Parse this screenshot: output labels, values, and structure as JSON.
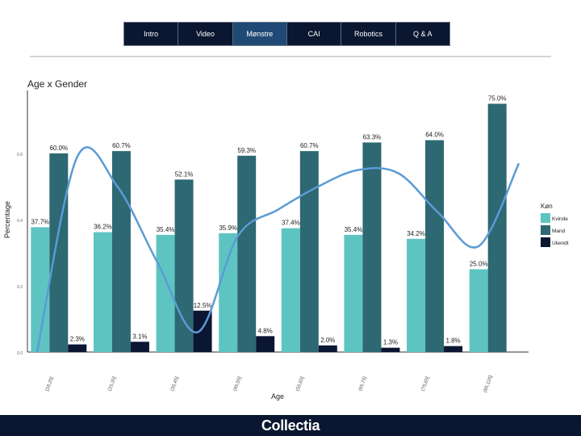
{
  "nav": {
    "tabs": [
      {
        "label": "Intro",
        "active": false
      },
      {
        "label": "Video",
        "active": false
      },
      {
        "label": "Mønstre",
        "active": true
      },
      {
        "label": "CAI",
        "active": false
      },
      {
        "label": "Robotics",
        "active": false
      },
      {
        "label": "Q & A",
        "active": false
      }
    ]
  },
  "footer": {
    "brand": "Collectia"
  },
  "colors": {
    "kvinde": "#5ec4c2",
    "mand": "#2d6873",
    "ukendt": "#0b1633",
    "trend": "#5b9bd5",
    "nav_bg": "#0b1630",
    "nav_active": "#204a76"
  },
  "chart_data": {
    "type": "bar",
    "title": "Age x Gender",
    "xlabel": "Age",
    "ylabel": "Percentage",
    "ylim": [
      0,
      0.8
    ],
    "yticks": [
      "0.0",
      "0.2",
      "0.4",
      "0.6"
    ],
    "categories": [
      "[18,25]",
      "(25,35]",
      "(35,45]",
      "(45,55]",
      "(55,65]",
      "(65,75]",
      "(75,85]",
      "(85,125]"
    ],
    "legend": {
      "title": "Køn",
      "position": "right"
    },
    "series": [
      {
        "name": "Kvinde",
        "values": [
          0.377,
          0.362,
          0.354,
          0.359,
          0.374,
          0.354,
          0.342,
          0.25
        ],
        "labels": [
          "37.7%",
          "36.2%",
          "35.4%",
          "35.9%",
          "37.4%",
          "35.4%",
          "34.2%",
          "25.0%"
        ]
      },
      {
        "name": "Mand",
        "values": [
          0.6,
          0.607,
          0.521,
          0.593,
          0.607,
          0.633,
          0.64,
          0.75
        ],
        "labels": [
          "60.0%",
          "60.7%",
          "52.1%",
          "59.3%",
          "60.7%",
          "63.3%",
          "64.0%",
          "75.0%"
        ]
      },
      {
        "name": "Ukendt",
        "values": [
          0.023,
          0.031,
          0.125,
          0.048,
          0.02,
          0.013,
          0.018,
          null
        ],
        "labels": [
          "2.3%",
          "3.1%",
          "12.5%",
          "4.8%",
          "2.0%",
          "1.3%",
          "1.8%",
          ""
        ]
      }
    ],
    "trend_line": {
      "color": "#5b9bd5",
      "points": [
        0.0,
        0.59,
        0.5,
        0.27,
        0.06,
        0.35,
        0.43,
        0.5,
        0.55,
        0.54,
        0.42,
        0.32,
        0.57
      ]
    }
  }
}
